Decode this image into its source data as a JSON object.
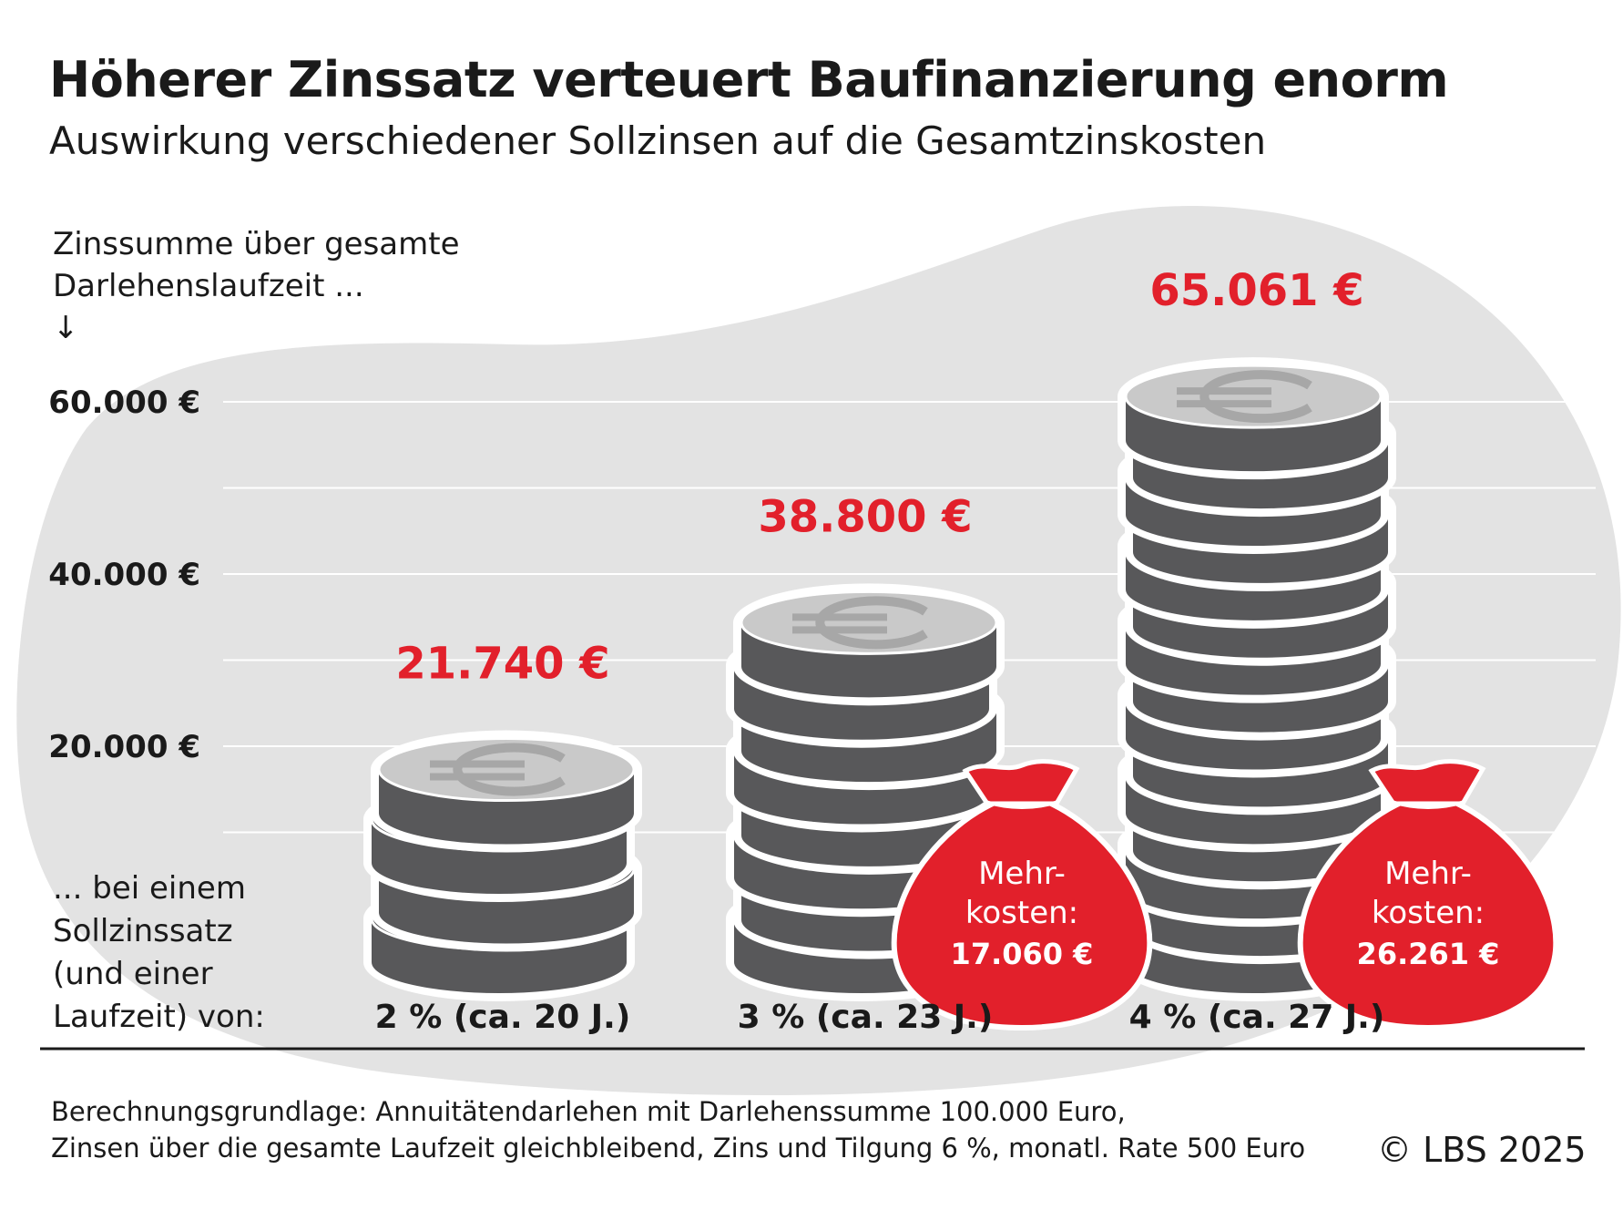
{
  "title": "Höherer Zinssatz verteuert Baufinanzierung enorm",
  "subtitle": "Auswirkung verschiedener Sollzinsen auf die Gesamtzinskosten",
  "ylabel_lines": [
    "Zinssumme über gesamte",
    "Darlehenslaufzeit ...",
    "↓"
  ],
  "xlabel_lines": [
    "... bei einem",
    "Sollzinssatz",
    "(und einer",
    "Laufzeit) von:"
  ],
  "footnote_lines": [
    "Berechnungsgrundlage: Annuitätendarlehen mit Darlehenssumme 100.000 Euro,",
    "Zinsen über die gesamte Laufzeit gleichbleibend, Zins und Tilgung 6 %, monatl. Rate 500 Euro"
  ],
  "copyright": "© LBS 2025",
  "colors": {
    "accent_red": "#e2202b",
    "coin_dark": "#58585a",
    "coin_top": "#c9c9c9",
    "background_blob": "#e3e3e3",
    "gridline": "#ffffff"
  },
  "chart_data": {
    "type": "bar",
    "categories": [
      "2 % (ca. 20 J.)",
      "3 % (ca. 23 J.)",
      "4 % (ca. 27 J.)"
    ],
    "values": [
      21740,
      38800,
      65061
    ],
    "value_labels": [
      "21.740 €",
      "38.800 €",
      "65.061 €"
    ],
    "extra_cost_values": [
      null,
      17060,
      26261
    ],
    "extra_cost_label_lines": [
      "Mehr-",
      "kosten:"
    ],
    "extra_cost_labels": [
      null,
      "17.060 €",
      "26.261 €"
    ],
    "yticks": [
      20000,
      40000,
      60000
    ],
    "ytick_labels": [
      "20.000 €",
      "40.000 €",
      "60.000 €"
    ],
    "ylim": [
      0,
      70000
    ],
    "grid": true,
    "mark_style": "coin stacks"
  }
}
